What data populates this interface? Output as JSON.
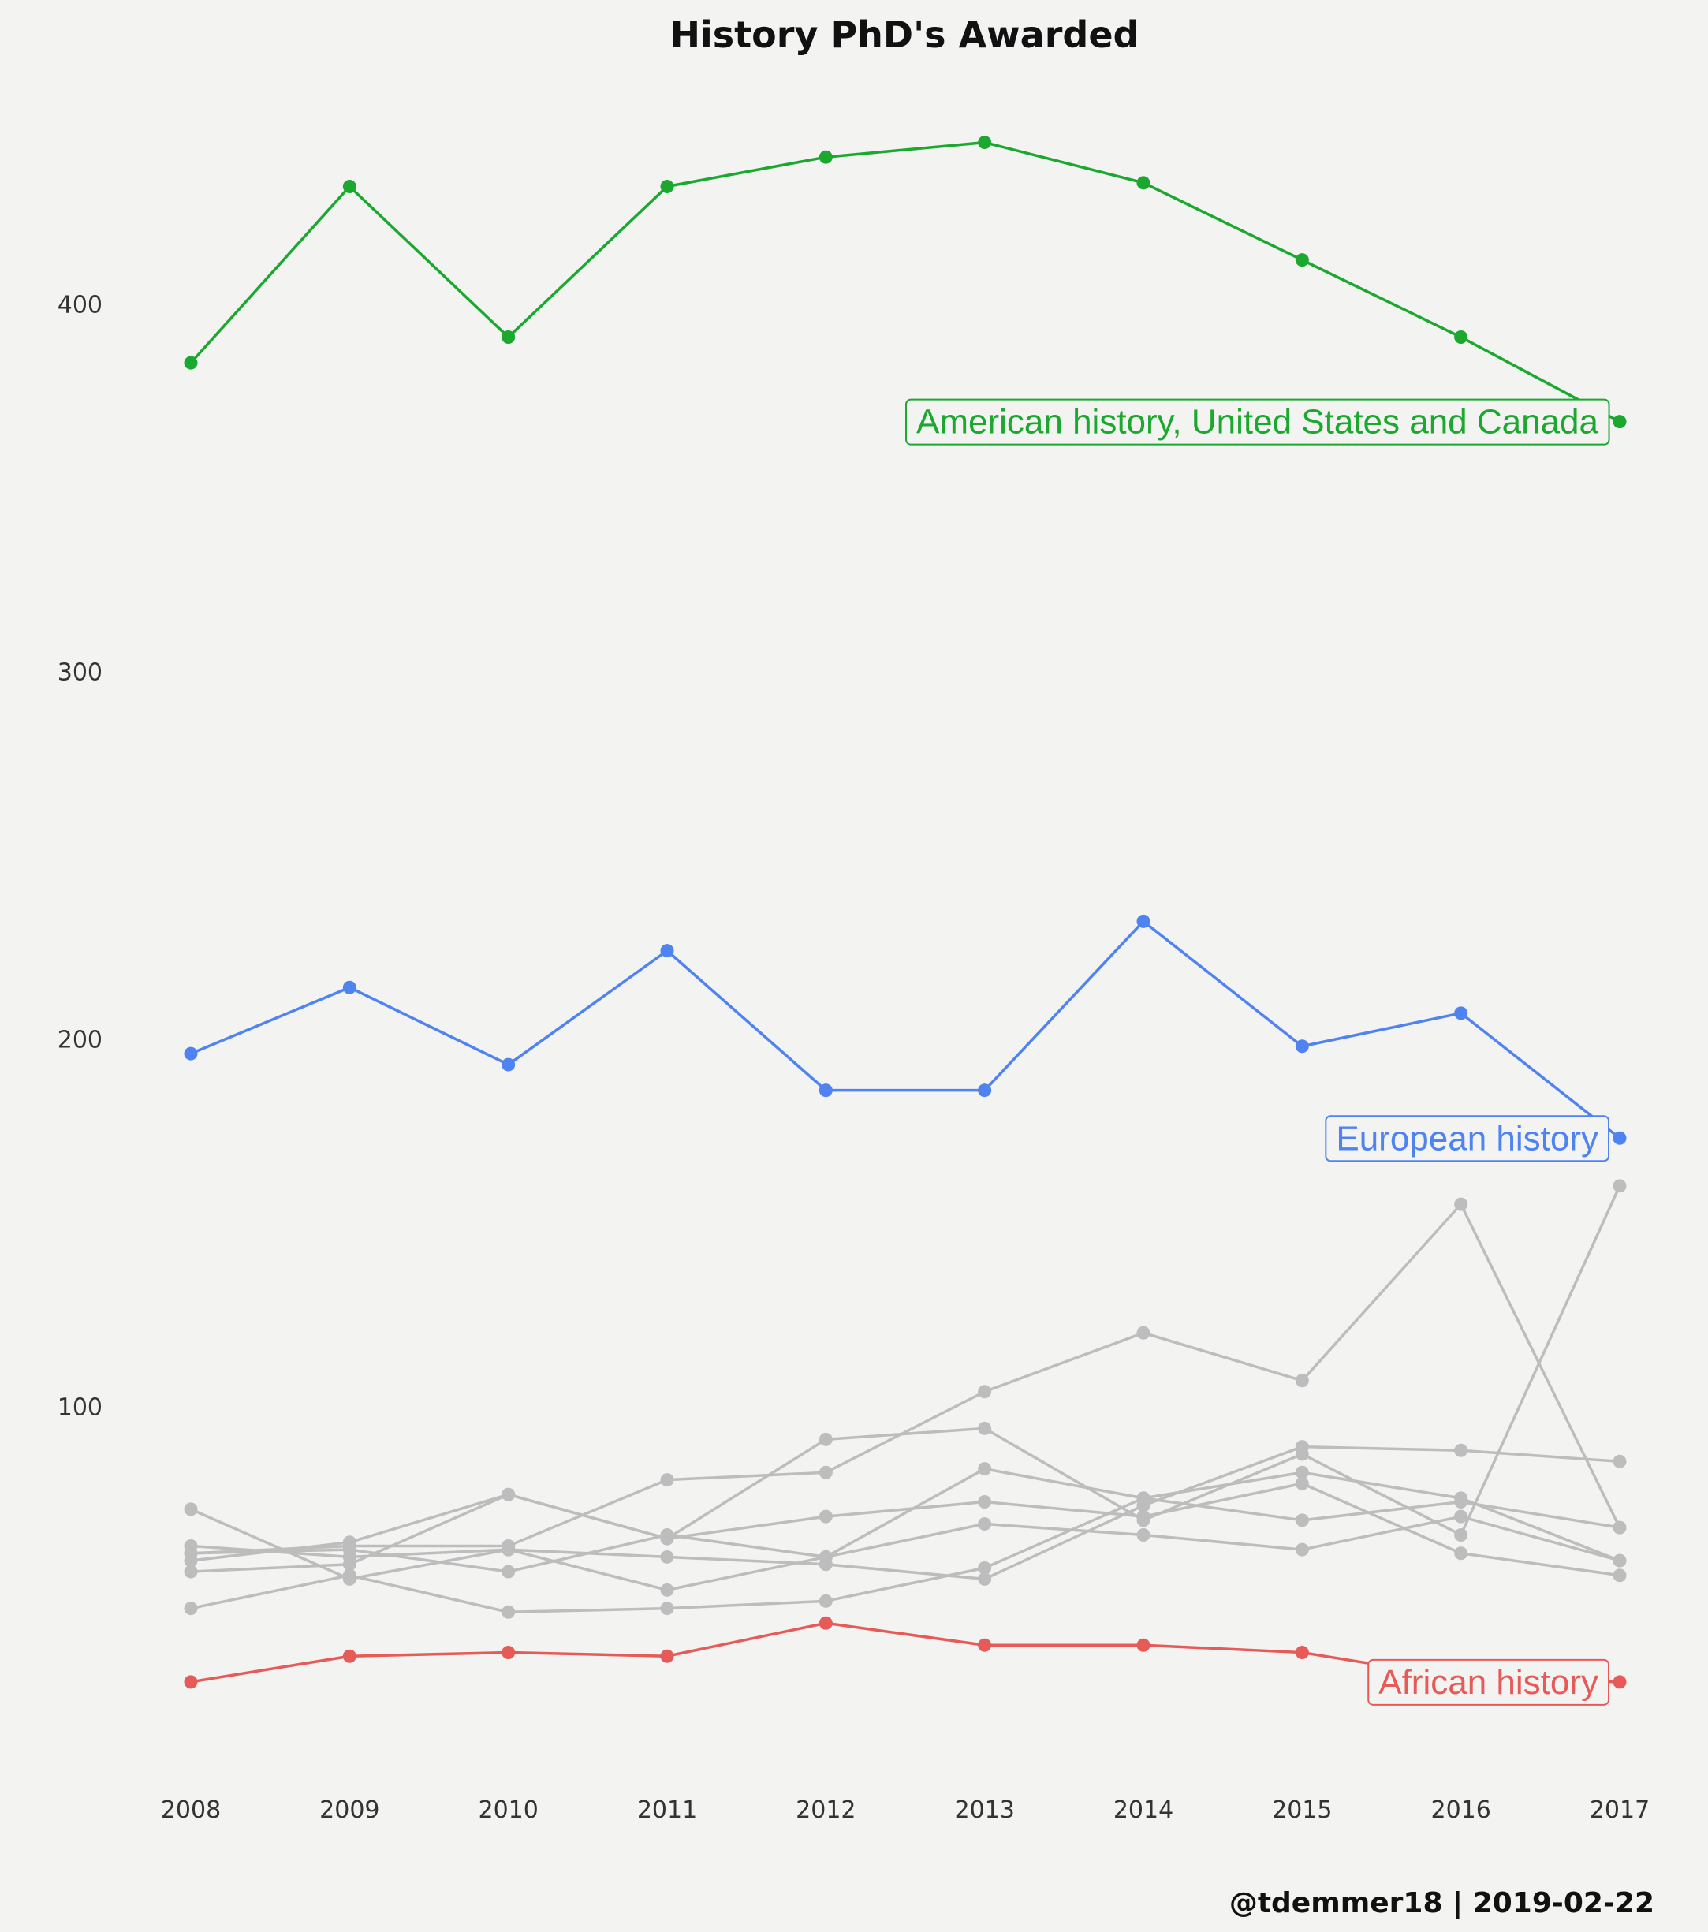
{
  "chart_data": {
    "type": "line",
    "title": "History PhD's Awarded",
    "caption": "@tdemmer18 | 2019-02-22",
    "xlabel": "",
    "ylabel": "",
    "x": [
      2008,
      2009,
      2010,
      2011,
      2012,
      2013,
      2014,
      2015,
      2016,
      2017
    ],
    "x_ticks": [
      "2008",
      "2009",
      "2010",
      "2011",
      "2012",
      "2013",
      "2014",
      "2015",
      "2016",
      "2017"
    ],
    "y_ticks": [
      "100",
      "200",
      "300",
      "400"
    ],
    "ylim": [
      2,
      457
    ],
    "grid": false,
    "colors": {
      "american": "#1aa82f",
      "european": "#4f83f1",
      "african": "#e65a57",
      "other": "#bdbdbd"
    },
    "highlighted_series": [
      {
        "key": "american",
        "name": "American history, United States and Canada",
        "values": [
          384,
          432,
          391,
          432,
          440,
          444,
          433,
          412,
          391,
          368
        ]
      },
      {
        "key": "european",
        "name": "European history",
        "values": [
          196,
          214,
          193,
          224,
          186,
          186,
          232,
          198,
          207,
          173
        ]
      },
      {
        "key": "african",
        "name": "African history",
        "values": [
          25,
          32,
          33,
          32,
          41,
          35,
          35,
          33,
          26,
          25
        ]
      }
    ],
    "other_series": [
      {
        "values": [
          60,
          62,
          62,
          80,
          82,
          104,
          120,
          107,
          155,
          67
        ]
      },
      {
        "values": [
          58,
          63,
          76,
          64,
          91,
          94,
          69,
          87,
          65,
          160
        ]
      },
      {
        "values": [
          62,
          59,
          61,
          59,
          57,
          53,
          73,
          89,
          88,
          85
        ]
      },
      {
        "values": [
          55,
          57,
          76,
          64,
          70,
          74,
          70,
          79,
          60,
          54
        ]
      },
      {
        "values": [
          72,
          53,
          61,
          50,
          59,
          83,
          75,
          69,
          74,
          67
        ]
      },
      {
        "values": [
          60,
          61,
          55,
          65,
          59,
          68,
          65,
          61,
          70,
          58
        ]
      },
      {
        "values": [
          45,
          54,
          44,
          45,
          47,
          56,
          75,
          82,
          75,
          58
        ]
      }
    ]
  }
}
